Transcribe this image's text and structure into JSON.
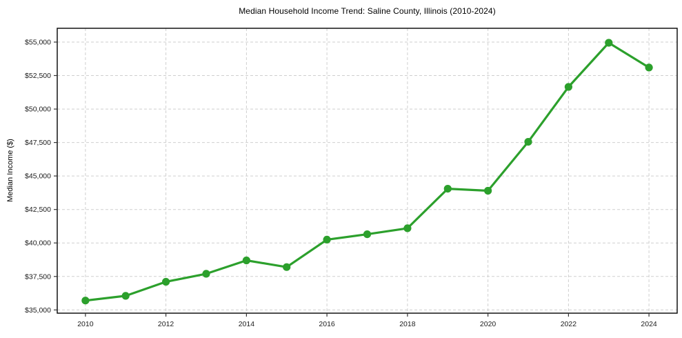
{
  "chart_data": {
    "type": "line",
    "title": "Median Household Income Trend: Saline County, Illinois (2010-2024)",
    "xlabel": "",
    "ylabel": "Median Income ($)",
    "series": [
      {
        "name": "Median Household Income",
        "x": [
          2010,
          2011,
          2012,
          2013,
          2014,
          2015,
          2016,
          2017,
          2018,
          2019,
          2020,
          2021,
          2022,
          2023,
          2024
        ],
        "values": [
          35700,
          36050,
          37100,
          37700,
          38700,
          38200,
          40250,
          40650,
          41100,
          44050,
          43900,
          47550,
          51650,
          54950,
          53100
        ]
      }
    ],
    "xlim": [
      2009.3,
      2024.7
    ],
    "ylim": [
      34758,
      56030
    ],
    "xtick_values": [
      2010,
      2012,
      2014,
      2016,
      2018,
      2020,
      2022,
      2024
    ],
    "xtick_labels": [
      "2010",
      "2012",
      "2014",
      "2016",
      "2018",
      "2020",
      "2022",
      "2024"
    ],
    "ytick_values": [
      35000,
      37500,
      40000,
      42500,
      45000,
      47500,
      50000,
      52500,
      55000
    ],
    "ytick_labels": [
      "$35,000",
      "$37,500",
      "$40,000",
      "$42,500",
      "$45,000",
      "$47,500",
      "$50,000",
      "$52,500",
      "$55,000"
    ],
    "grid": true,
    "legend_position": "none",
    "line_color": "#2ca02c",
    "marker": "circle",
    "grid_color": "#cfcfcf",
    "background_color": "#ffffff"
  }
}
